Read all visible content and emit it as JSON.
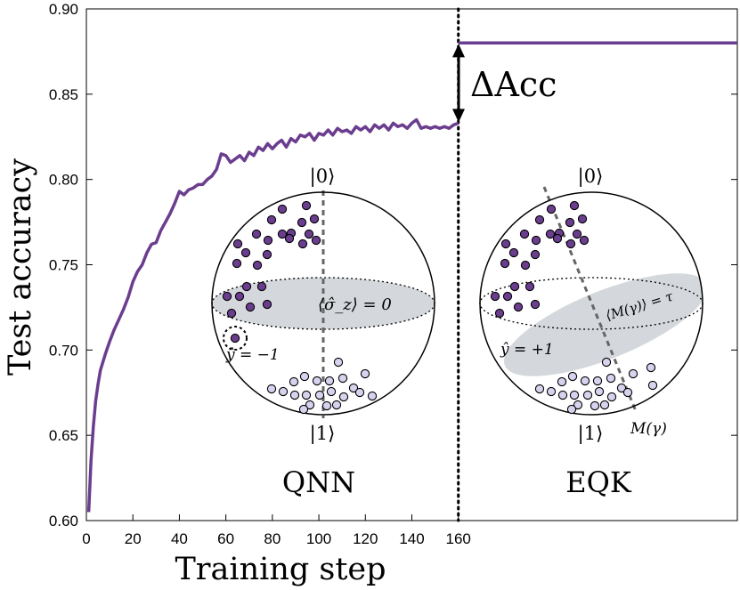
{
  "chart_data": {
    "type": "line",
    "title": "",
    "xlabel": "Training step",
    "ylabel": "Test accuracy",
    "xlim": [
      0,
      280
    ],
    "ylim": [
      0.6,
      0.9
    ],
    "x_ticks": [
      0,
      20,
      40,
      60,
      80,
      100,
      120,
      140,
      160
    ],
    "x_tick_labels": [
      "0",
      "20",
      "40",
      "60",
      "80",
      "100",
      "120",
      "140",
      "160"
    ],
    "y_ticks": [
      0.6,
      0.65,
      0.7,
      0.75,
      0.8,
      0.85,
      0.9
    ],
    "y_tick_labels": [
      "0.60",
      "0.65",
      "0.70",
      "0.75",
      "0.80",
      "0.85",
      "0.90"
    ],
    "series": [
      {
        "name": "QNN",
        "color": "#6b3d8f",
        "x": [
          1,
          2,
          3,
          4,
          5,
          6,
          8,
          10,
          12,
          14,
          16,
          18,
          20,
          22,
          24,
          26,
          28,
          30,
          32,
          34,
          36,
          38,
          40,
          42,
          44,
          46,
          48,
          50,
          52,
          54,
          56,
          58,
          60,
          62,
          64,
          66,
          68,
          70,
          72,
          74,
          76,
          78,
          80,
          82,
          84,
          86,
          88,
          90,
          92,
          94,
          96,
          98,
          100,
          102,
          104,
          106,
          108,
          110,
          112,
          114,
          116,
          118,
          120,
          122,
          124,
          126,
          128,
          130,
          132,
          134,
          136,
          138,
          140,
          142,
          144,
          146,
          148,
          150,
          152,
          154,
          156,
          158,
          160
        ],
        "values": [
          0.605,
          0.635,
          0.655,
          0.67,
          0.68,
          0.688,
          0.697,
          0.705,
          0.712,
          0.718,
          0.724,
          0.731,
          0.74,
          0.746,
          0.75,
          0.757,
          0.762,
          0.763,
          0.77,
          0.775,
          0.78,
          0.786,
          0.793,
          0.791,
          0.794,
          0.795,
          0.797,
          0.797,
          0.8,
          0.802,
          0.806,
          0.815,
          0.814,
          0.81,
          0.812,
          0.814,
          0.811,
          0.816,
          0.814,
          0.819,
          0.817,
          0.821,
          0.818,
          0.821,
          0.823,
          0.819,
          0.824,
          0.822,
          0.826,
          0.825,
          0.827,
          0.823,
          0.827,
          0.826,
          0.829,
          0.826,
          0.83,
          0.828,
          0.829,
          0.827,
          0.831,
          0.829,
          0.831,
          0.828,
          0.832,
          0.83,
          0.832,
          0.829,
          0.833,
          0.831,
          0.832,
          0.83,
          0.833,
          0.835,
          0.83,
          0.831,
          0.83,
          0.831,
          0.83,
          0.831,
          0.83,
          0.832,
          0.833
        ]
      },
      {
        "name": "EQK",
        "color": "#6b3d8f",
        "x": [
          160,
          280
        ],
        "values": [
          0.88,
          0.88
        ]
      }
    ],
    "vertical_line_x": 160,
    "annotations": {
      "delta": "ΔAcc",
      "delta_from": 0.833,
      "delta_to": 0.88
    },
    "insets": [
      {
        "name": "qnn",
        "label": "QNN",
        "top_state": "|0⟩",
        "bottom_state": "|1⟩",
        "plane_label": "⟨σ̂_z⟩ = 0",
        "prediction_label": "ŷ = −1"
      },
      {
        "name": "eqk",
        "label": "EQK",
        "top_state": "|0⟩",
        "bottom_state": "|1⟩",
        "plane_label": "⟨M(γ)⟩ = τ",
        "prediction_label": "ŷ = +1",
        "measurement_label": "M(γ)"
      }
    ],
    "colors": {
      "line": "#6b3d8f",
      "dark_point": "#6b3d8f",
      "light_point": "#d8d2ee",
      "plane_fill": "#d4d8dc",
      "axis": "#000000"
    }
  }
}
